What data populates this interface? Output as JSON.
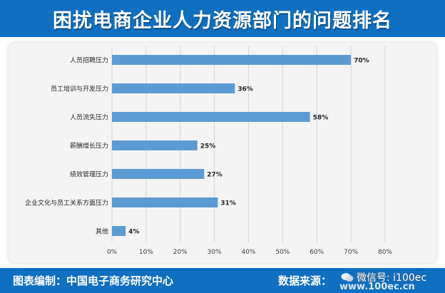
{
  "header": {
    "title": "困扰电商企业人力资源部门的问题排名"
  },
  "footer": {
    "source_label": "图表编制：中国电子商务研究中心",
    "data_source_label": "数据来源：",
    "site": "www.100ec.cn",
    "watermark": "微信号: i100ec"
  },
  "colors": {
    "bar": "#5b9bd5",
    "header": "#0f6fc0"
  },
  "chart_data": {
    "type": "bar",
    "orientation": "horizontal",
    "title": "困扰电商企业人力资源部门的问题排名",
    "categories": [
      "人员招聘压力",
      "员工培训与开发压力",
      "人员流失压力",
      "薪酬增长压力",
      "绩效管理压力",
      "企业文化与员工关系方面压力",
      "其他"
    ],
    "values": [
      70,
      36,
      58,
      25,
      27,
      31,
      4
    ],
    "value_labels": [
      "70%",
      "36%",
      "58%",
      "25%",
      "27%",
      "31%",
      "4%"
    ],
    "xlim": [
      0,
      80
    ],
    "xticks": [
      "0%",
      "10%",
      "20%",
      "30%",
      "40%",
      "50%",
      "60%",
      "70%",
      "80%"
    ],
    "grid": true,
    "legend": "none"
  }
}
